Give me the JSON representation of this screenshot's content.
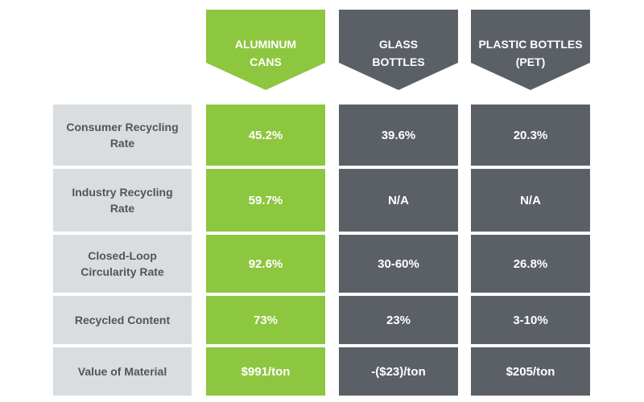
{
  "chart_data": {
    "type": "table",
    "columns": [
      {
        "label": "ALUMINUM\nCANS",
        "color": "#8dc63f"
      },
      {
        "label": "GLASS\nBOTTLES",
        "color": "#5a6066"
      },
      {
        "label": "PLASTIC BOTTLES\n(PET)",
        "color": "#5a6066"
      }
    ],
    "rows": [
      {
        "label": "Consumer Recycling Rate",
        "values": [
          "45.2%",
          "39.6%",
          "20.3%"
        ]
      },
      {
        "label": "Industry Recycling Rate",
        "values": [
          "59.7%",
          "N/A",
          "N/A"
        ]
      },
      {
        "label": "Closed-Loop Circularity Rate",
        "values": [
          "92.6%",
          "30-60%",
          "26.8%"
        ]
      },
      {
        "label": "Recycled Content",
        "values": [
          "73%",
          "23%",
          "3-10%"
        ]
      },
      {
        "label": "Value of Material",
        "values": [
          "$991/ton",
          "-($23)/ton",
          "$205/ton"
        ]
      }
    ],
    "row_label_color": "#d9dde0"
  }
}
